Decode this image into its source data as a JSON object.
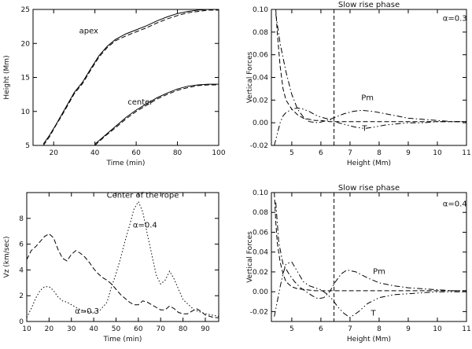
{
  "chart_data": [
    {
      "id": "p1",
      "type": "line",
      "title": "",
      "xlabel": "Time (min)",
      "ylabel": "Height (Mm)",
      "xlim": [
        10,
        100
      ],
      "ylim": [
        5,
        25
      ],
      "xticks": [
        20,
        40,
        60,
        80,
        100
      ],
      "yticks": [
        5,
        10,
        15,
        20,
        25
      ],
      "annotations": [
        {
          "text": "apex",
          "x": 37,
          "y": 21.5
        },
        {
          "text": "center",
          "x": 62,
          "y": 11
        }
      ],
      "series": [
        {
          "name": "apex-solid",
          "style": "solid",
          "x": [
            15,
            18,
            21,
            24,
            27,
            30,
            34,
            38,
            42,
            46,
            50,
            55,
            60,
            65,
            70,
            75,
            80,
            85,
            90,
            95,
            100
          ],
          "y": [
            5.2,
            6.5,
            8.0,
            9.6,
            11.2,
            12.8,
            14.3,
            16.3,
            18.2,
            19.6,
            20.6,
            21.4,
            22.0,
            22.6,
            23.3,
            23.9,
            24.4,
            24.7,
            24.9,
            25.0,
            25.1
          ]
        },
        {
          "name": "apex-dashed",
          "style": "dashed",
          "x": [
            15,
            18,
            21,
            24,
            27,
            30,
            34,
            38,
            42,
            46,
            50,
            55,
            60,
            65,
            70,
            75,
            80,
            85,
            90,
            95,
            100
          ],
          "y": [
            5.0,
            6.3,
            7.9,
            9.4,
            11.0,
            12.6,
            14.1,
            16.1,
            18.0,
            19.4,
            20.4,
            21.1,
            21.7,
            22.3,
            23.0,
            23.6,
            24.1,
            24.5,
            24.7,
            24.9,
            24.9
          ]
        },
        {
          "name": "center-solid",
          "style": "solid",
          "x": [
            40,
            45,
            50,
            55,
            60,
            65,
            70,
            75,
            80,
            85,
            90,
            95,
            100
          ],
          "y": [
            5.2,
            6.5,
            7.8,
            9.1,
            10.2,
            11.1,
            12.0,
            12.7,
            13.3,
            13.7,
            13.9,
            14.0,
            14.0
          ]
        },
        {
          "name": "center-dashed",
          "style": "dashed",
          "x": [
            40,
            45,
            50,
            55,
            60,
            65,
            70,
            75,
            80,
            85,
            90,
            95,
            100
          ],
          "y": [
            5.0,
            6.4,
            7.6,
            8.9,
            10.0,
            10.9,
            11.8,
            12.5,
            13.1,
            13.5,
            13.8,
            13.9,
            13.9
          ]
        }
      ]
    },
    {
      "id": "p2",
      "type": "line",
      "title": "Slow  rise phase",
      "xlabel": "Height (Mm)",
      "ylabel": "Vertical Forces",
      "xlim": [
        4.3,
        11
      ],
      "ylim": [
        -0.02,
        0.1
      ],
      "xticks": [
        5,
        6,
        7,
        8,
        9,
        10,
        11
      ],
      "yticks": [
        -0.02,
        0.0,
        0.02,
        0.04,
        0.06,
        0.08,
        0.1
      ],
      "ytick_labels": [
        "-0.02",
        "0.00",
        "0.02",
        "0.04",
        "0.06",
        "0.08",
        "0.10"
      ],
      "vline": 6.45,
      "annotations": [
        {
          "text": "α=0.3",
          "x": 10.6,
          "y": 0.09
        },
        {
          "text": "Pm",
          "x": 7.6,
          "y": 0.02
        },
        {
          "text": "T",
          "x": 7.5,
          "y": -0.007
        }
      ],
      "series": [
        {
          "name": "dashed",
          "style": "dashed",
          "x": [
            4.45,
            4.5,
            4.6,
            4.7,
            4.8,
            5.0,
            5.2,
            5.4,
            5.6,
            5.8,
            6.0,
            6.3,
            6.6,
            7.0,
            7.5,
            8.0,
            9.0,
            10.0,
            11.0
          ],
          "y": [
            0.1,
            0.08,
            0.05,
            0.03,
            0.02,
            0.012,
            0.007,
            0.004,
            0.003,
            0.002,
            0.002,
            0.001,
            0.001,
            0.001,
            0.001,
            0.001,
            0.001,
            0.001,
            0.001
          ]
        },
        {
          "name": "Pm",
          "style": "dashdot",
          "x": [
            4.45,
            4.6,
            4.8,
            5.0,
            5.2,
            5.4,
            5.6,
            5.9,
            6.2,
            6.5,
            6.8,
            7.1,
            7.4,
            7.8,
            8.2,
            8.6,
            9.0,
            9.5,
            10.0,
            10.5,
            11.0
          ],
          "y": [
            0.096,
            0.07,
            0.045,
            0.025,
            0.012,
            0.005,
            0.001,
            0.0,
            0.002,
            0.005,
            0.008,
            0.01,
            0.011,
            0.01,
            0.008,
            0.006,
            0.004,
            0.003,
            0.002,
            0.001,
            0.001
          ]
        },
        {
          "name": "T",
          "style": "dashdotdot",
          "x": [
            4.4,
            4.5,
            4.6,
            4.7,
            4.8,
            5.0,
            5.2,
            5.4,
            5.6,
            5.8,
            6.0,
            6.3,
            6.6,
            6.9,
            7.2,
            7.5,
            7.8,
            8.2,
            8.6,
            9.0,
            9.5,
            10.0,
            10.5,
            11.0
          ],
          "y": [
            -0.02,
            -0.01,
            0.0,
            0.006,
            0.009,
            0.012,
            0.013,
            0.012,
            0.01,
            0.007,
            0.005,
            0.003,
            0.0,
            -0.002,
            -0.004,
            -0.005,
            -0.004,
            -0.002,
            -0.001,
            0.0,
            0.0,
            0.001,
            0.001,
            0.001
          ]
        }
      ]
    },
    {
      "id": "p3",
      "type": "line",
      "title": "",
      "xlabel": "Time (min)",
      "ylabel": "Vz (km/sec)",
      "xlim": [
        10,
        96
      ],
      "ylim": [
        0,
        10
      ],
      "xticks": [
        10,
        20,
        30,
        40,
        50,
        60,
        70,
        80,
        90
      ],
      "yticks": [
        0,
        2,
        4,
        6,
        8
      ],
      "annotations": [
        {
          "text": "Center of the rope",
          "x": 62,
          "y": 9.6
        },
        {
          "text": "α=0.4",
          "x": 63,
          "y": 7.3
        },
        {
          "text": "α=0.3",
          "x": 37,
          "y": 0.6
        }
      ],
      "series": [
        {
          "name": "α=0.4",
          "style": "dotted",
          "x": [
            10,
            12,
            14,
            16,
            18,
            20,
            22,
            24,
            26,
            28,
            30,
            33,
            36,
            40,
            43,
            46,
            48,
            50,
            52,
            54,
            56,
            58,
            60,
            62,
            64,
            66,
            68,
            70,
            72,
            74,
            76,
            80,
            85,
            90,
            96
          ],
          "y": [
            0.3,
            1.0,
            1.8,
            2.4,
            2.7,
            2.7,
            2.4,
            1.9,
            1.6,
            1.5,
            1.3,
            1.0,
            0.8,
            0.7,
            0.9,
            1.5,
            2.7,
            3.7,
            4.9,
            6.2,
            7.4,
            8.7,
            9.3,
            8.5,
            6.8,
            5.2,
            3.6,
            2.9,
            3.2,
            3.9,
            3.3,
            1.7,
            0.9,
            0.6,
            0.4
          ]
        },
        {
          "name": "α=0.3",
          "style": "dashed",
          "x": [
            10,
            12,
            14,
            16,
            18,
            20,
            22,
            24,
            26,
            28,
            30,
            32,
            34,
            36,
            38,
            40,
            42,
            44,
            46,
            48,
            50,
            52,
            54,
            56,
            58,
            60,
            62,
            64,
            66,
            68,
            70,
            72,
            74,
            76,
            78,
            80,
            82,
            84,
            86,
            88,
            90,
            92,
            94,
            96
          ],
          "y": [
            4.8,
            5.5,
            5.8,
            6.2,
            6.6,
            6.8,
            6.5,
            5.6,
            4.9,
            4.7,
            5.2,
            5.5,
            5.3,
            5.0,
            4.6,
            4.1,
            3.7,
            3.4,
            3.2,
            2.9,
            2.5,
            2.1,
            1.8,
            1.5,
            1.3,
            1.3,
            1.6,
            1.5,
            1.3,
            1.1,
            0.9,
            0.9,
            1.2,
            1.0,
            0.7,
            0.6,
            0.6,
            0.8,
            1.0,
            0.8,
            0.5,
            0.4,
            0.3,
            0.3
          ]
        }
      ]
    },
    {
      "id": "p4",
      "type": "line",
      "title": "Slow  rise phase",
      "xlabel": "Height (Mm)",
      "ylabel": "Vertical Forces",
      "xlim": [
        4.3,
        11
      ],
      "ylim": [
        -0.03,
        0.1
      ],
      "xticks": [
        5,
        6,
        7,
        8,
        9,
        10,
        11
      ],
      "yticks": [
        -0.02,
        0.0,
        0.02,
        0.04,
        0.06,
        0.08,
        0.1
      ],
      "ytick_labels": [
        "-0.02",
        "0.00",
        "0.02",
        "0.04",
        "0.06",
        "0.08",
        "0.10"
      ],
      "vline": 6.45,
      "annotations": [
        {
          "text": "α=0.4",
          "x": 10.6,
          "y": 0.086
        },
        {
          "text": "Pm",
          "x": 8.0,
          "y": 0.018
        },
        {
          "text": "T",
          "x": 7.8,
          "y": -0.024
        }
      ],
      "series": [
        {
          "name": "dashed",
          "style": "dashed",
          "x": [
            4.4,
            4.45,
            4.5,
            4.6,
            4.7,
            4.8,
            5.0,
            5.2,
            5.5,
            5.8,
            6.1,
            6.5,
            7.0,
            8.0,
            9.0,
            10.0,
            11.0
          ],
          "y": [
            0.1,
            0.07,
            0.05,
            0.03,
            0.018,
            0.01,
            0.005,
            0.003,
            0.002,
            0.001,
            0.001,
            0.001,
            0.001,
            0.001,
            0.001,
            0.001,
            0.001
          ]
        },
        {
          "name": "Pm",
          "style": "dashdot",
          "x": [
            4.45,
            4.55,
            4.7,
            4.9,
            5.1,
            5.3,
            5.5,
            5.7,
            5.9,
            6.1,
            6.3,
            6.5,
            6.7,
            6.9,
            7.2,
            7.6,
            8.0,
            8.5,
            9.0,
            9.5,
            10.0,
            10.5,
            11.0
          ],
          "y": [
            0.09,
            0.05,
            0.028,
            0.018,
            0.01,
            0.004,
            0.0,
            -0.004,
            -0.007,
            -0.006,
            0.0,
            0.01,
            0.018,
            0.022,
            0.02,
            0.014,
            0.009,
            0.006,
            0.004,
            0.003,
            0.002,
            0.001,
            0.001
          ]
        },
        {
          "name": "T",
          "style": "dashdotdot",
          "x": [
            4.4,
            4.5,
            4.6,
            4.7,
            4.8,
            5.0,
            5.2,
            5.4,
            5.6,
            5.8,
            6.0,
            6.2,
            6.4,
            6.6,
            6.8,
            7.0,
            7.3,
            7.6,
            8.0,
            8.5,
            9.0,
            9.5,
            10.0,
            10.5,
            11.0
          ],
          "y": [
            -0.025,
            -0.01,
            0.005,
            0.018,
            0.028,
            0.03,
            0.02,
            0.01,
            0.006,
            0.004,
            0.002,
            -0.002,
            -0.008,
            -0.016,
            -0.022,
            -0.026,
            -0.02,
            -0.012,
            -0.006,
            -0.003,
            -0.002,
            -0.001,
            0.0,
            0.0,
            0.0
          ]
        }
      ]
    }
  ]
}
